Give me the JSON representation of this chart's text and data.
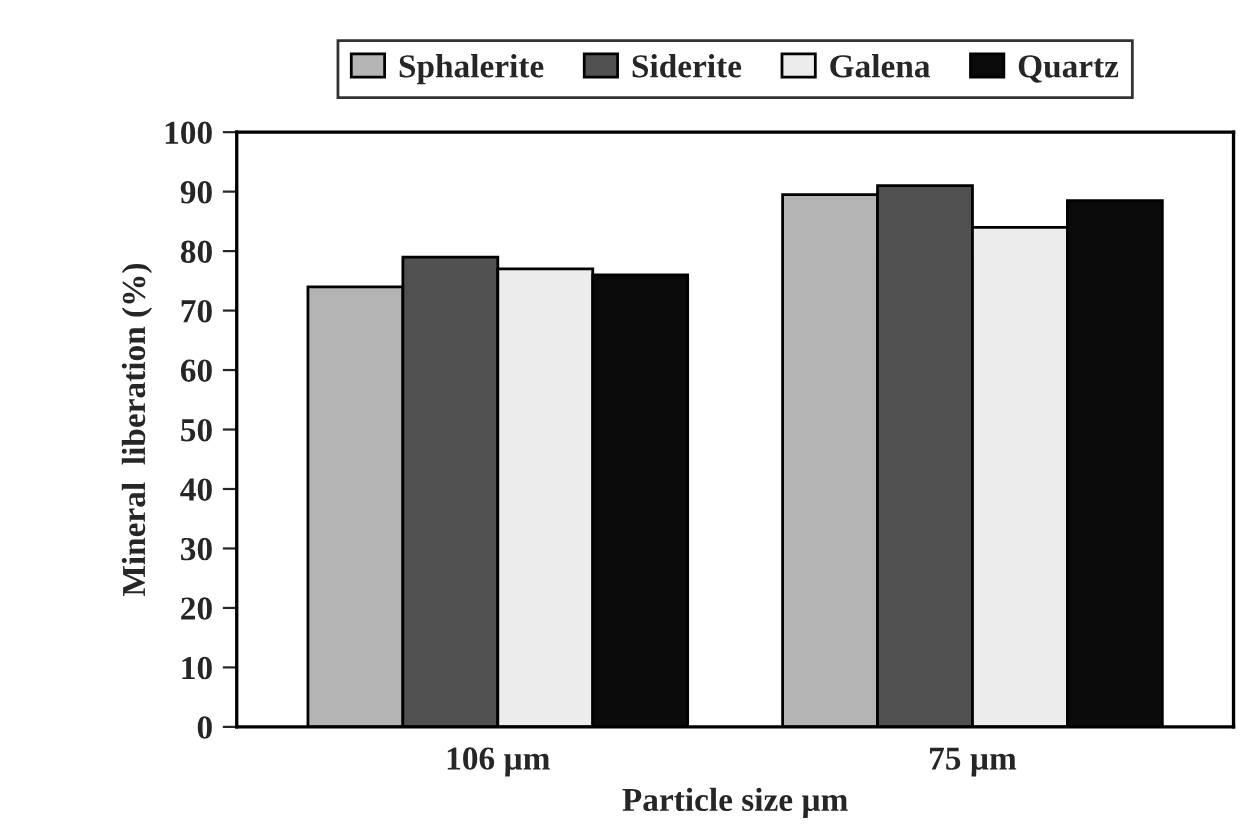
{
  "chart_data": {
    "type": "bar",
    "xlabel": "Particle size µm",
    "ylabel": "Mineral  liberation (%)",
    "categories": [
      "106 µm",
      "75 µm"
    ],
    "series": [
      {
        "name": "Sphalerite",
        "color": "#b4b4b4",
        "values": [
          74,
          89.5
        ]
      },
      {
        "name": "Siderite",
        "color": "#505050",
        "values": [
          79,
          91
        ]
      },
      {
        "name": "Galena",
        "color": "#ececec",
        "values": [
          77,
          84
        ]
      },
      {
        "name": "Quartz",
        "color": "#0a0a0a",
        "values": [
          76,
          88.5
        ]
      }
    ],
    "ylim": [
      0,
      100
    ],
    "yticks": [
      0,
      10,
      20,
      30,
      40,
      50,
      60,
      70,
      80,
      90,
      100
    ],
    "grid": false,
    "legend": "top"
  }
}
